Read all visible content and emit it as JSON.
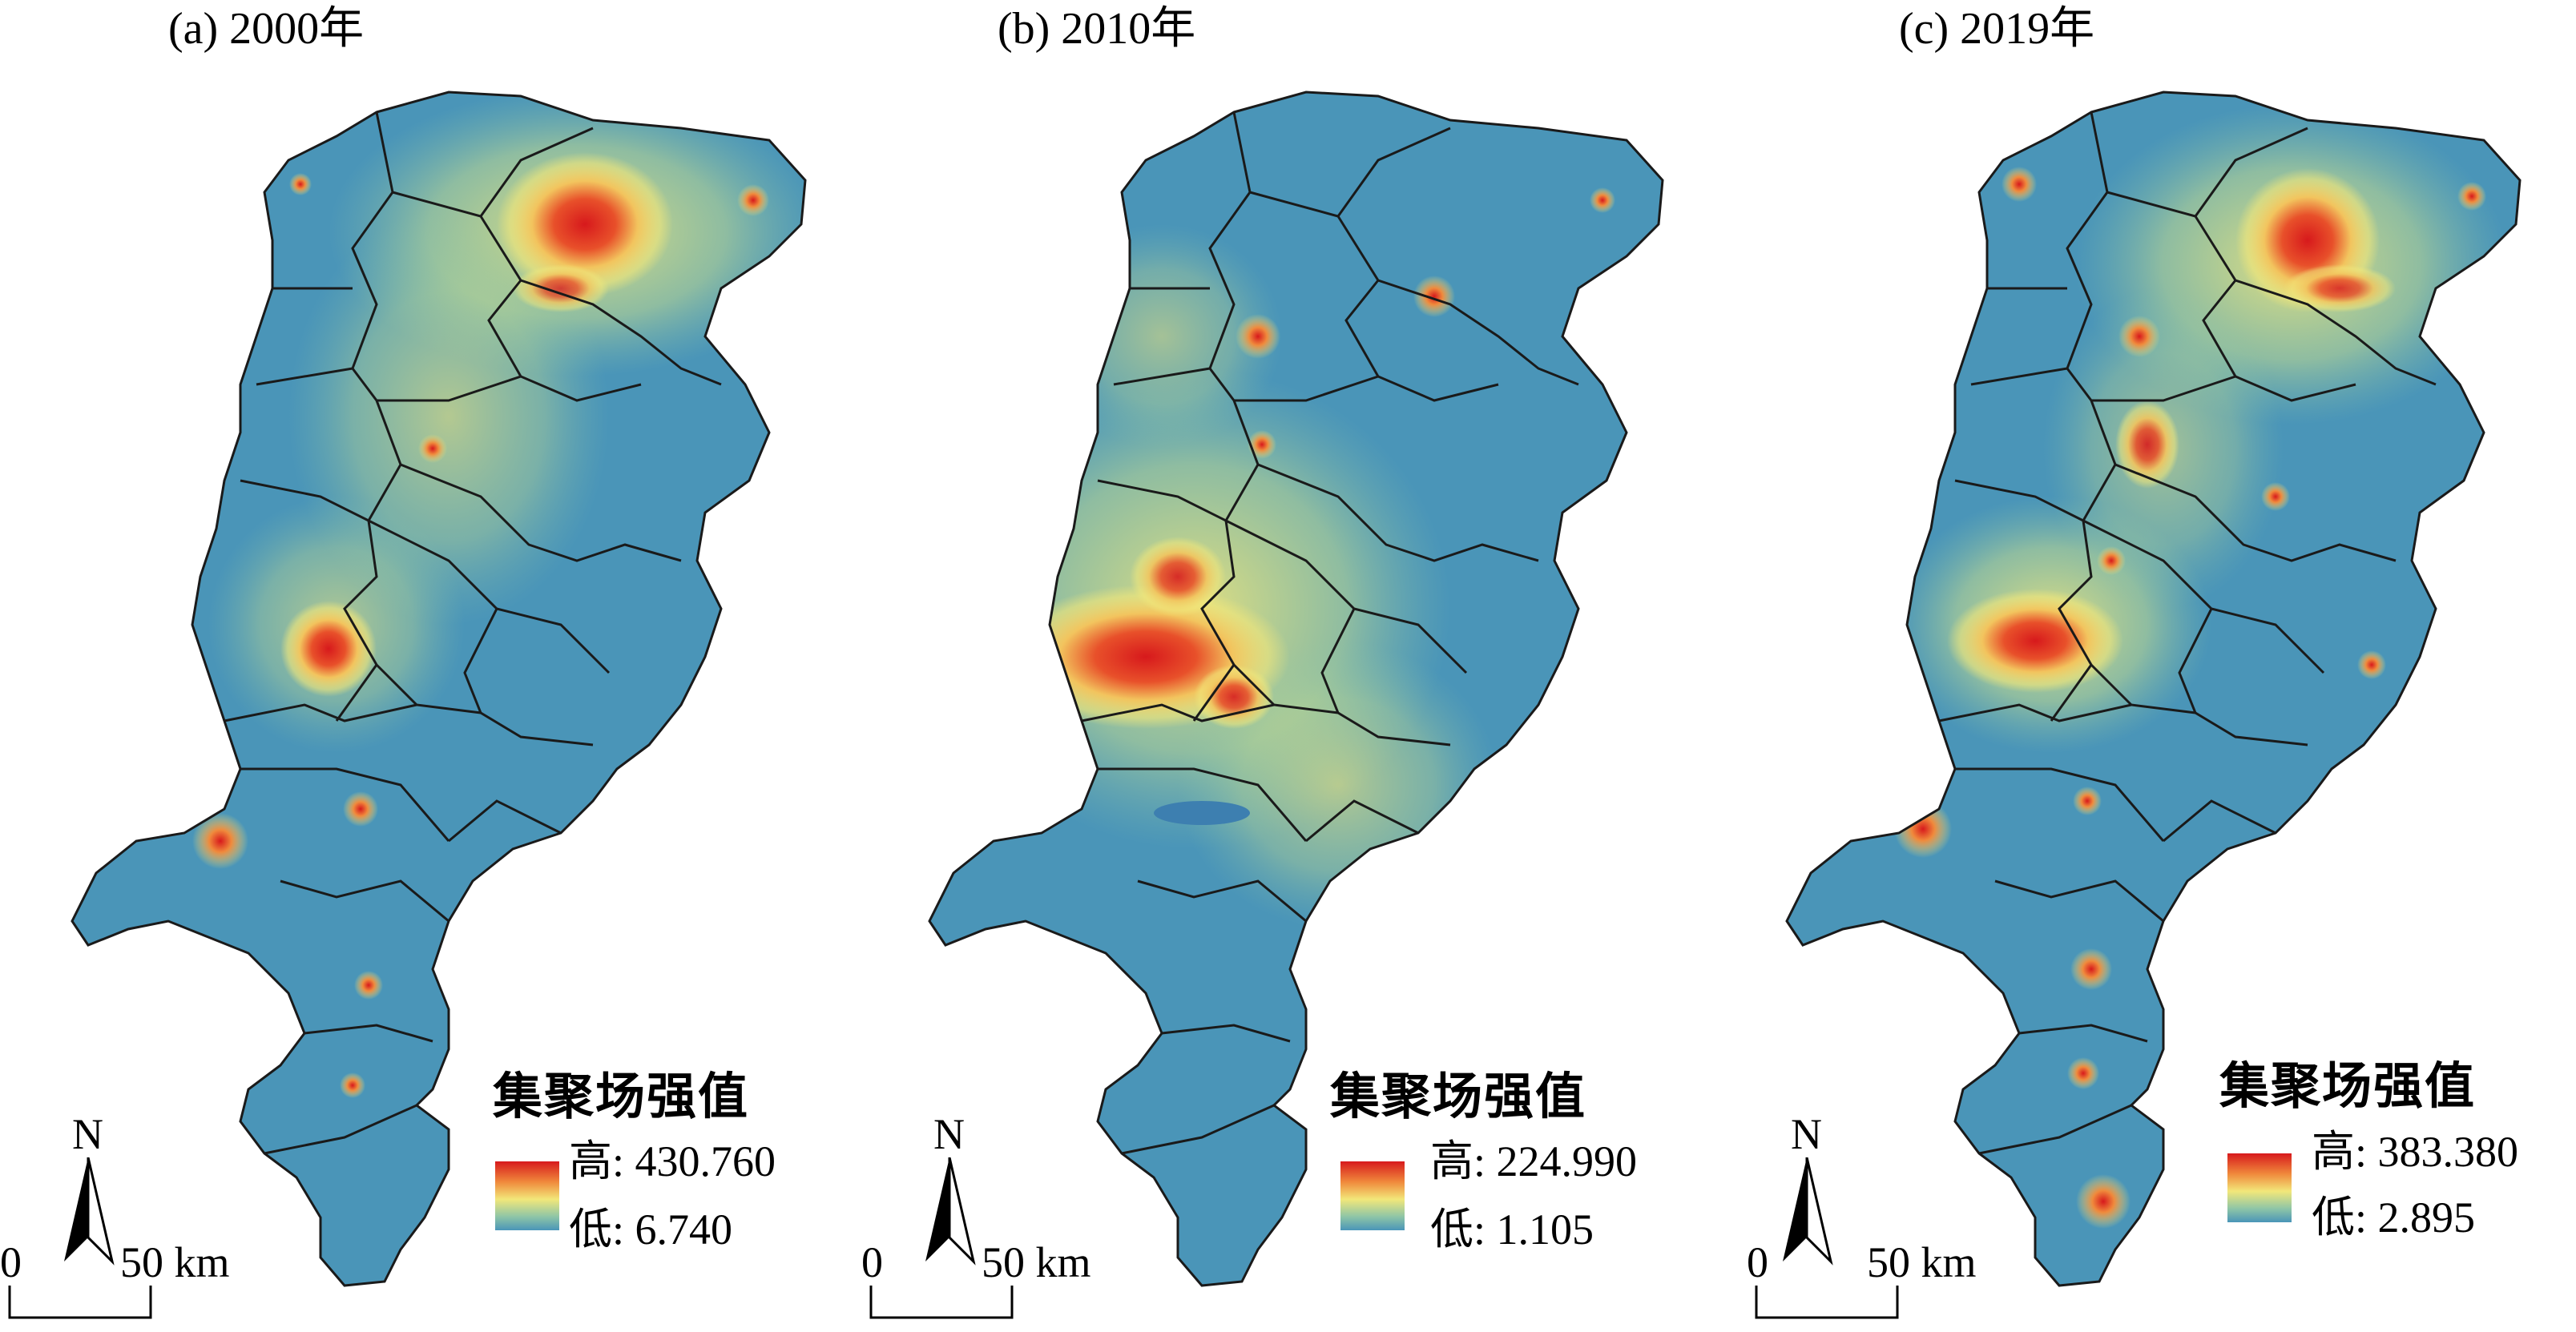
{
  "panels": [
    {
      "title": "(a) 2000年",
      "legend_title": "集聚场强值",
      "high_label": "高: 430.760",
      "low_label": "低: 6.740"
    },
    {
      "title": "(b) 2010年",
      "legend_title": "集聚场强值",
      "high_label": "高: 224.990",
      "low_label": "低: 1.105"
    },
    {
      "title": "(c) 2019年",
      "legend_title": "集聚场强值",
      "high_label": "高: 383.380",
      "low_label": "低: 2.895"
    }
  ],
  "north_label": "N",
  "scale": {
    "zero": "0",
    "mid": "50 km"
  },
  "colors": {
    "base_blue": "#4a95b8",
    "mid_green": "#8fc6a6",
    "yellow": "#f2e77a",
    "orange": "#f08a3c",
    "red": "#d7191c",
    "border": "#1a1a1a",
    "water": "#3d7fb0"
  }
}
